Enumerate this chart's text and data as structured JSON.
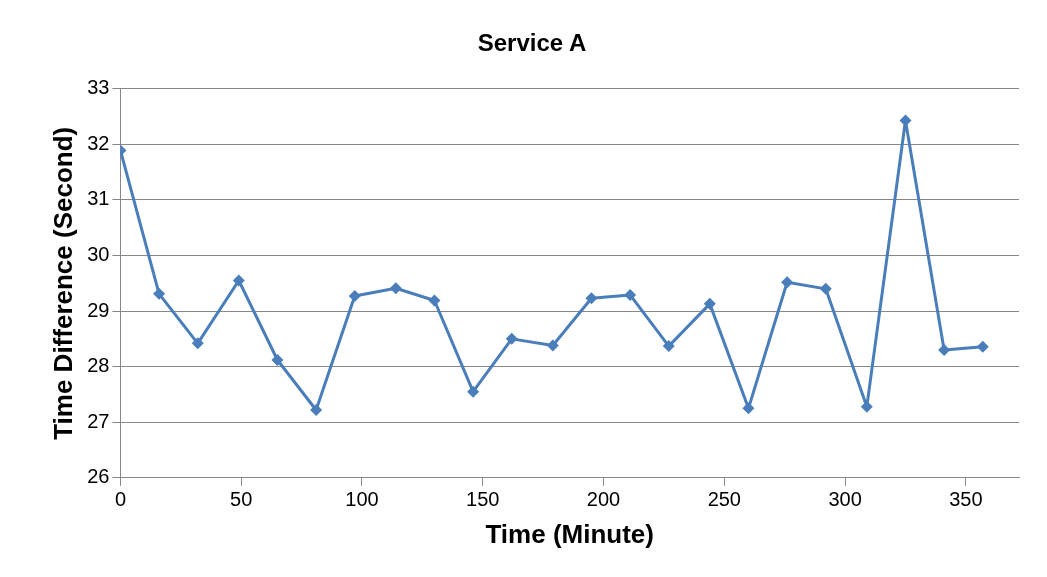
{
  "chart_data": {
    "type": "line",
    "title": "Service A",
    "xlabel": "Time (Minute)",
    "ylabel": "Time Difference (Second)",
    "x": [
      0,
      16,
      32,
      49,
      65,
      81,
      97,
      114,
      130,
      146,
      162,
      179,
      195,
      211,
      227,
      244,
      260,
      276,
      292,
      309,
      325,
      341,
      357
    ],
    "series": [
      {
        "color": "#4a7ebb",
        "values": [
          31.89,
          29.31,
          28.42,
          29.55,
          28.12,
          27.22,
          29.27,
          29.41,
          29.19,
          27.55,
          28.5,
          28.38,
          29.23,
          29.29,
          28.37,
          29.13,
          27.25,
          29.52,
          29.4,
          27.28,
          32.43,
          28.3,
          28.36
        ]
      }
    ],
    "xlim": [
      0,
      372
    ],
    "xticks": [
      0,
      50,
      100,
      150,
      200,
      250,
      300,
      350
    ],
    "ylim": [
      26,
      33
    ],
    "yticks": [
      26,
      27,
      28,
      29,
      30,
      31,
      32,
      33
    ],
    "grid": "y",
    "legend": false,
    "marker": "diamond",
    "line_style": "solid"
  }
}
